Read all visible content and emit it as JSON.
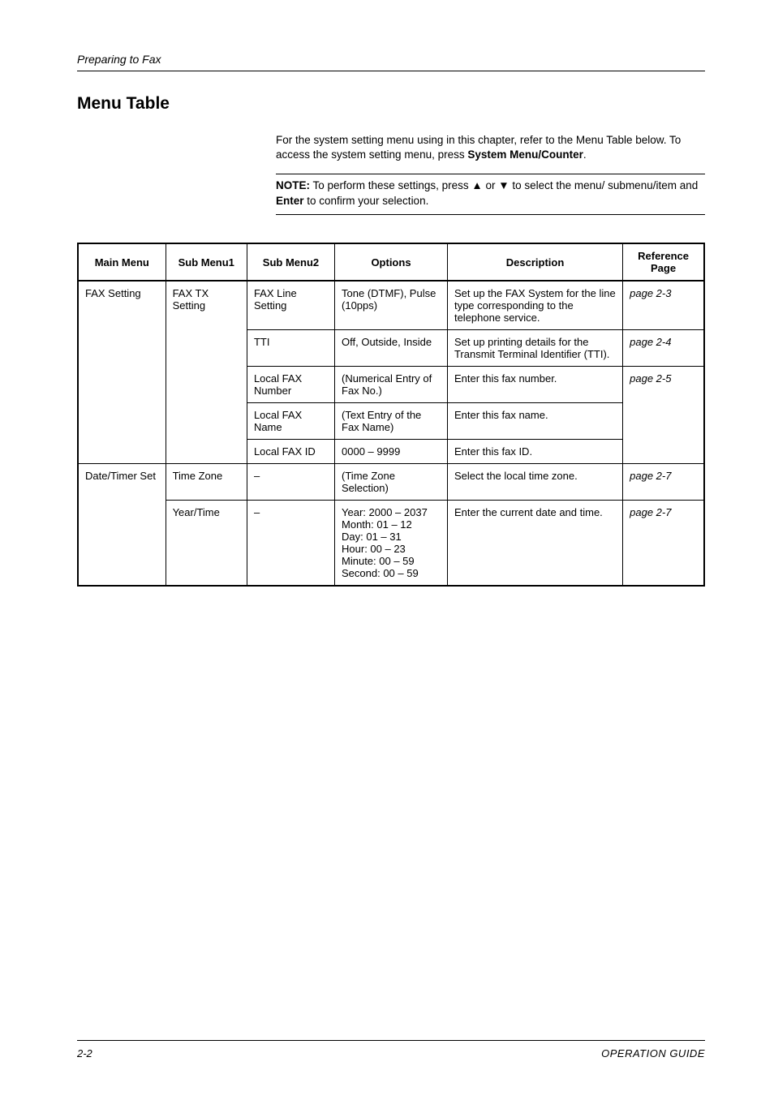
{
  "header": {
    "running_head": "Preparing to Fax"
  },
  "section": {
    "title": "Menu Table",
    "intro_line1": "For the system setting menu using in this chapter, refer to the Menu Table below. To access the system setting menu, press ",
    "intro_bold": "System Menu/Counter",
    "intro_after": ".",
    "note_label": "NOTE:",
    "note_text_pre": " To perform these settings, press ",
    "note_tri_up": "▲",
    "note_or": " or ",
    "note_tri_down": "▼",
    "note_text_mid": " to select the menu/ submenu/item and ",
    "note_enter": "Enter",
    "note_text_post": " to confirm your selection."
  },
  "table": {
    "headers": {
      "main": "Main Menu",
      "sub1": "Sub Menu1",
      "sub2": "Sub Menu2",
      "options": "Options",
      "description": "Description",
      "ref_line1": "Reference",
      "ref_line2": "Page"
    },
    "rows": {
      "r1_main": "FAX Setting",
      "r1_sub1": "FAX TX Setting",
      "r1_sub2": "FAX Line Setting",
      "r1_opt": "Tone (DTMF), Pulse (10pps)",
      "r1_desc": "Set up the FAX System for the line type corresponding to the telephone service.",
      "r1_ref": "page 2-3",
      "r2_sub2": "TTI",
      "r2_opt": "Off, Outside, Inside",
      "r2_desc": "Set up printing details for the Transmit Terminal Identifier (TTI).",
      "r2_ref": "page 2-4",
      "r3_sub2": "Local FAX Number",
      "r3_opt": "(Numerical Entry of Fax No.)",
      "r3_desc": "Enter this fax number.",
      "r3_ref": "page 2-5",
      "r4_sub2": "Local FAX Name",
      "r4_opt": "(Text Entry of the Fax Name)",
      "r4_desc": "Enter this fax name.",
      "r5_sub2": "Local FAX ID",
      "r5_opt": "0000 – 9999",
      "r5_desc": "Enter this fax ID.",
      "r6_main": "Date/Timer Set",
      "r6_sub1": "Time Zone",
      "r6_sub2": "–",
      "r6_opt": "(Time Zone Selection)",
      "r6_desc": "Select the local time zone.",
      "r6_ref": "page 2-7",
      "r7_sub1": "Year/Time",
      "r7_sub2": "–",
      "r7_opt": "Year: 2000 – 2037\nMonth: 01 – 12\nDay: 01 – 31\nHour: 00 – 23\nMinute: 00 – 59\nSecond: 00 – 59",
      "r7_desc": "Enter the current date and time.",
      "r7_ref": "page 2-7"
    }
  },
  "footer": {
    "pagenum": "2-2",
    "guide": "OPERATION GUIDE"
  },
  "colors": {
    "text": "#000000",
    "background": "#ffffff",
    "border": "#000000"
  }
}
